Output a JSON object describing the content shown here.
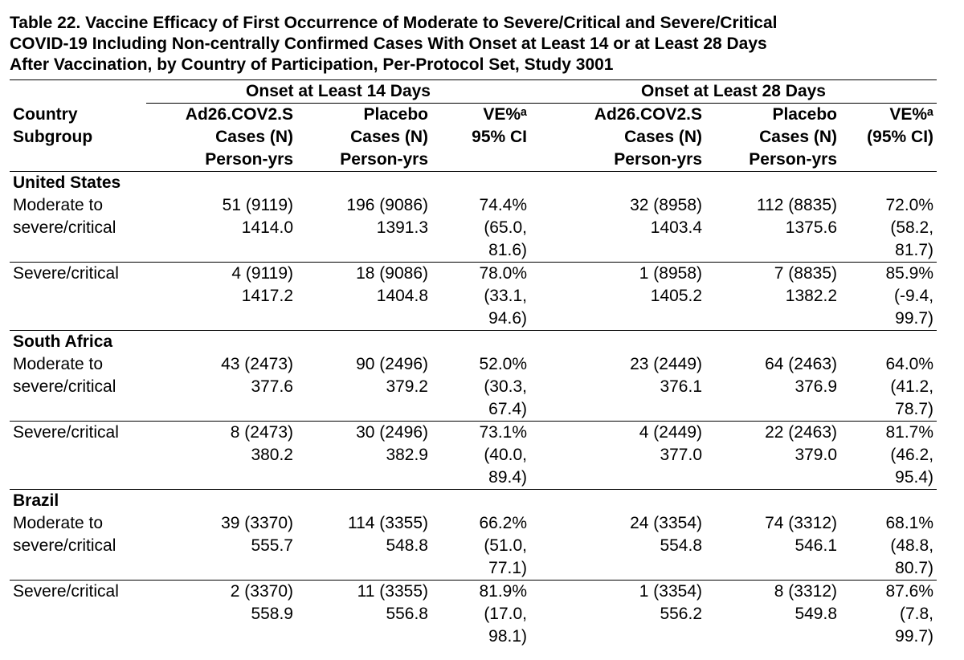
{
  "title_lines": [
    "Table 22. Vaccine Efficacy of First Occurrence of Moderate to Severe/Critical and Severe/Critical",
    "COVID-19 Including Non-centrally Confirmed Cases With Onset at Least 14 or at Least 28 Days",
    "After Vaccination, by Country of Participation, Per-Protocol Set, Study 3001"
  ],
  "header": {
    "onset14": "Onset at Least 14 Days",
    "onset28": "Onset at Least 28 Days",
    "row_head": [
      "Country",
      "Subgroup"
    ],
    "c14": [
      [
        "Ad26.COV2.S",
        "Cases (N)",
        "Person-yrs"
      ],
      [
        "Placebo",
        "Cases (N)",
        "Person-yrs"
      ],
      [
        "VE%ᵃ",
        "95% CI"
      ]
    ],
    "c28": [
      [
        "Ad26.COV2.S",
        "Cases (N)",
        "Person-yrs"
      ],
      [
        "Placebo",
        "Cases (N)",
        "Person-yrs"
      ],
      [
        "VE%ᵃ",
        "(95% CI)"
      ]
    ]
  },
  "countries": [
    {
      "name": "United States",
      "rows": [
        {
          "subgroup": [
            "Moderate to",
            "severe/critical"
          ],
          "v14": [
            "51 (9119)",
            "1414.0"
          ],
          "p14": [
            "196 (9086)",
            "1391.3"
          ],
          "ve14": [
            "74.4%",
            "(65.0,",
            "81.6)"
          ],
          "v28": [
            "32 (8958)",
            "1403.4"
          ],
          "p28": [
            "112 (8835)",
            "1375.6"
          ],
          "ve28": [
            "72.0%",
            "(58.2,",
            "81.7)"
          ]
        },
        {
          "subgroup": [
            "Severe/critical"
          ],
          "v14": [
            "4 (9119)",
            "1417.2"
          ],
          "p14": [
            "18 (9086)",
            "1404.8"
          ],
          "ve14": [
            "78.0%",
            "(33.1,",
            "94.6)"
          ],
          "v28": [
            "1 (8958)",
            "1405.2"
          ],
          "p28": [
            "7 (8835)",
            "1382.2"
          ],
          "ve28": [
            "85.9%",
            "(-9.4,",
            "99.7)"
          ]
        }
      ]
    },
    {
      "name": "South Africa",
      "rows": [
        {
          "subgroup": [
            "Moderate to",
            "severe/critical"
          ],
          "v14": [
            "43 (2473)",
            "377.6"
          ],
          "p14": [
            "90 (2496)",
            "379.2"
          ],
          "ve14": [
            "52.0%",
            "(30.3,",
            "67.4)"
          ],
          "v28": [
            "23 (2449)",
            "376.1"
          ],
          "p28": [
            "64 (2463)",
            "376.9"
          ],
          "ve28": [
            "64.0%",
            "(41.2,",
            "78.7)"
          ]
        },
        {
          "subgroup": [
            "Severe/critical"
          ],
          "v14": [
            "8 (2473)",
            "380.2"
          ],
          "p14": [
            "30 (2496)",
            "382.9"
          ],
          "ve14": [
            "73.1%",
            "(40.0,",
            "89.4)"
          ],
          "v28": [
            "4 (2449)",
            "377.0"
          ],
          "p28": [
            "22 (2463)",
            "379.0"
          ],
          "ve28": [
            "81.7%",
            "(46.2,",
            "95.4)"
          ]
        }
      ]
    },
    {
      "name": "Brazil",
      "rows": [
        {
          "subgroup": [
            "Moderate to",
            "severe/critical"
          ],
          "v14": [
            "39 (3370)",
            "555.7"
          ],
          "p14": [
            "114 (3355)",
            "548.8"
          ],
          "ve14": [
            "66.2%",
            "(51.0,",
            "77.1)"
          ],
          "v28": [
            "24 (3354)",
            "554.8"
          ],
          "p28": [
            "74 (3312)",
            "546.1"
          ],
          "ve28": [
            "68.1%",
            "(48.8,",
            "80.7)"
          ]
        },
        {
          "subgroup": [
            "Severe/critical"
          ],
          "v14": [
            "2 (3370)",
            "558.9"
          ],
          "p14": [
            "11 (3355)",
            "556.8"
          ],
          "ve14": [
            "81.9%",
            "(17.0,",
            "98.1)"
          ],
          "v28": [
            "1 (3354)",
            "556.2"
          ],
          "p28": [
            "8 (3312)",
            "549.8"
          ],
          "ve28": [
            "87.6%",
            "(7.8,",
            "99.7)"
          ]
        }
      ]
    }
  ]
}
